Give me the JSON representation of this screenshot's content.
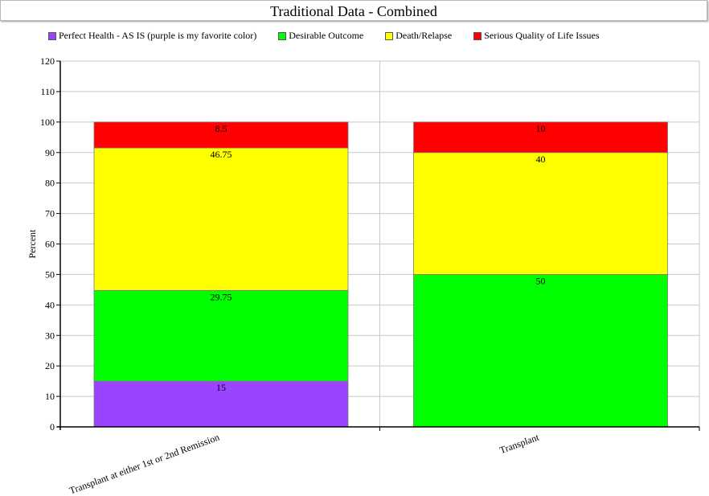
{
  "title": "Traditional Data - Combined",
  "chart_data": {
    "type": "bar",
    "stacked": true,
    "title": "Traditional Data - Combined",
    "xlabel": "",
    "ylabel": "Percent",
    "ylim": [
      0,
      120
    ],
    "yticks": [
      0,
      10,
      20,
      30,
      40,
      50,
      60,
      70,
      80,
      90,
      100,
      110,
      120
    ],
    "grid": true,
    "legend_position": "top",
    "categories": [
      "Transplant at either 1st or 2nd Remission",
      "Transplant"
    ],
    "series": [
      {
        "name": "Perfect Health - AS IS (purple is my favorite color)",
        "color": "#9944ff",
        "values": [
          15,
          0
        ],
        "labels": [
          "15",
          ""
        ]
      },
      {
        "name": "Desirable Outcome",
        "color": "#00ff00",
        "values": [
          29.75,
          50
        ],
        "labels": [
          "29.75",
          "50"
        ]
      },
      {
        "name": "Death/Relapse",
        "color": "#ffff00",
        "values": [
          46.75,
          40
        ],
        "labels": [
          "46.75",
          "40"
        ]
      },
      {
        "name": "Serious Quality of Life Issues",
        "color": "#ff0000",
        "values": [
          8.5,
          10
        ],
        "labels": [
          "8.5",
          "10"
        ]
      }
    ]
  }
}
